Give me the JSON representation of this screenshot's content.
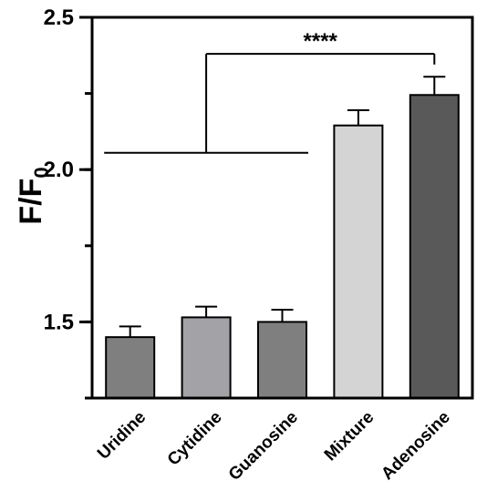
{
  "chart_data": {
    "type": "bar",
    "categories": [
      "Uridine",
      "Cytidine",
      "Guanosine",
      "Mixture",
      "Adenosine"
    ],
    "values": [
      1.45,
      1.515,
      1.5,
      2.145,
      2.245
    ],
    "errors": [
      0.035,
      0.035,
      0.04,
      0.05,
      0.06
    ],
    "colors": [
      "#7f7f7f",
      "#a3a3a7",
      "#7f7f7f",
      "#d4d4d4",
      "#595959"
    ],
    "ylabel_main": "F/F",
    "ylabel_sub": "0",
    "ylim": [
      1.25,
      2.5
    ],
    "yticks": [
      1.5,
      2.0,
      2.5
    ],
    "ytick_labels": [
      "1.5",
      "2.0",
      "2.5"
    ],
    "significance": {
      "label": "****",
      "group": [
        "Uridine",
        "Cytidine",
        "Guanosine"
      ],
      "group_level": 2.055,
      "bracket_level": 2.38,
      "target": "Adenosine",
      "target_level": 2.345
    },
    "grid": false,
    "legend": "none"
  }
}
